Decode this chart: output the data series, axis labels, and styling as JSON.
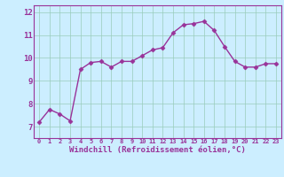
{
  "x": [
    0,
    1,
    2,
    3,
    4,
    5,
    6,
    7,
    8,
    9,
    10,
    11,
    12,
    13,
    14,
    15,
    16,
    17,
    18,
    19,
    20,
    21,
    22,
    23
  ],
  "y": [
    7.2,
    7.75,
    7.55,
    7.25,
    9.5,
    9.8,
    9.85,
    9.6,
    9.85,
    9.85,
    10.1,
    10.35,
    10.45,
    11.1,
    11.45,
    11.5,
    11.6,
    11.2,
    10.5,
    9.85,
    9.6,
    9.6,
    9.75,
    9.75
  ],
  "line_color": "#993399",
  "marker_color": "#993399",
  "bg_color": "#cceeff",
  "grid_color": "#99ccbb",
  "xlabel": "Windchill (Refroidissement éolien,°C)",
  "xlim": [
    -0.5,
    23.5
  ],
  "ylim": [
    6.5,
    12.3
  ],
  "yticks": [
    7,
    8,
    9,
    10,
    11,
    12
  ],
  "xticks": [
    0,
    1,
    2,
    3,
    4,
    5,
    6,
    7,
    8,
    9,
    10,
    11,
    12,
    13,
    14,
    15,
    16,
    17,
    18,
    19,
    20,
    21,
    22,
    23
  ],
  "xtick_fontsize": 5.0,
  "ytick_fontsize": 6.5,
  "xlabel_fontsize": 6.5,
  "line_width": 1.0,
  "marker_size": 2.5,
  "tick_color": "#993399",
  "label_color": "#993399",
  "spine_color": "#993399"
}
